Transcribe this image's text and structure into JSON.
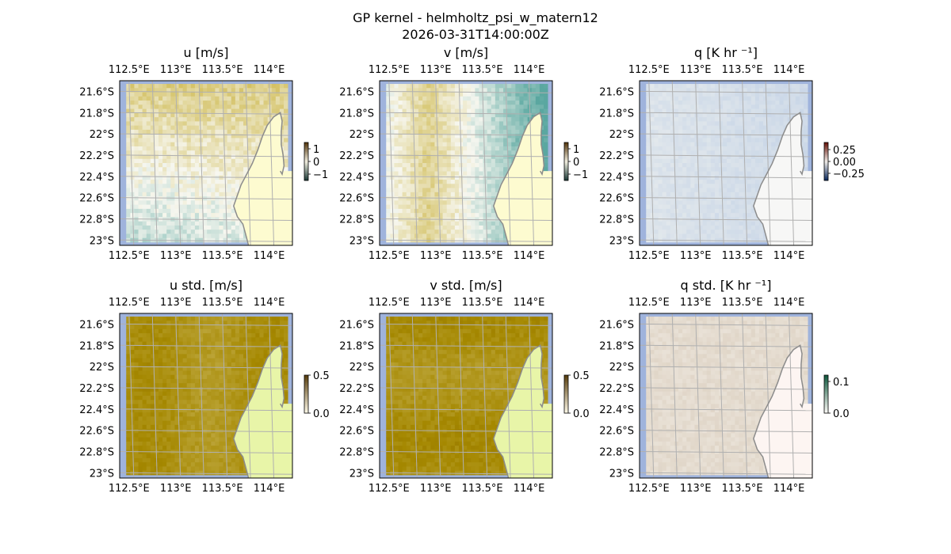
{
  "figure": {
    "title": "GP kernel - helmholtz_psi_w_matern12",
    "subtitle": "2026-03-31T14:00:00Z"
  },
  "colors": {
    "land": "#fdfbd0",
    "land_std": "#e8f5a8",
    "ocean_edge": "#9fb3dc",
    "coast": "#8c8c8c",
    "grid": "#b0b0b0"
  },
  "chart_data": [
    {
      "type": "heatmap",
      "title": "u [m/s]",
      "x_ticks": [
        "112.5°E",
        "113°E",
        "113.5°E",
        "114°E"
      ],
      "y_ticks": [
        "21.6°S",
        "21.8°S",
        "22°S",
        "22.2°S",
        "22.4°S",
        "22.6°S",
        "22.8°S",
        "23°S"
      ],
      "x_tick_values": [
        112.5,
        113.0,
        113.5,
        114.0
      ],
      "y_tick_values": [
        -21.6,
        -21.8,
        -22.0,
        -22.2,
        -22.4,
        -22.6,
        -22.8,
        -23.0
      ],
      "xlim": [
        112.4,
        114.25
      ],
      "ylim": [
        -23.05,
        -21.5
      ],
      "colorbar": {
        "ticks": [
          "1",
          "0",
          "−1"
        ],
        "tick_values": [
          1,
          0,
          -1
        ],
        "range": [
          -1.5,
          1.5
        ]
      },
      "field": "u",
      "grid": true
    },
    {
      "type": "heatmap",
      "title": "v [m/s]",
      "x_ticks": [
        "112.5°E",
        "113°E",
        "113.5°E",
        "114°E"
      ],
      "y_ticks": [
        "21.6°S",
        "21.8°S",
        "22°S",
        "22.2°S",
        "22.4°S",
        "22.6°S",
        "22.8°S",
        "23°S"
      ],
      "x_tick_values": [
        112.5,
        113.0,
        113.5,
        114.0
      ],
      "y_tick_values": [
        -21.6,
        -21.8,
        -22.0,
        -22.2,
        -22.4,
        -22.6,
        -22.8,
        -23.0
      ],
      "xlim": [
        112.4,
        114.25
      ],
      "ylim": [
        -23.05,
        -21.5
      ],
      "colorbar": {
        "ticks": [
          "1",
          "0",
          "−1"
        ],
        "tick_values": [
          1,
          0,
          -1
        ],
        "range": [
          -1.5,
          1.5
        ]
      },
      "field": "v",
      "grid": true
    },
    {
      "type": "heatmap",
      "title": "q [K hr ⁻¹]",
      "x_ticks": [
        "112.5°E",
        "113°E",
        "113.5°E",
        "114°E"
      ],
      "y_ticks": [
        "21.6°S",
        "21.8°S",
        "22°S",
        "22.2°S",
        "22.4°S",
        "22.6°S",
        "22.8°S",
        "23°S"
      ],
      "x_tick_values": [
        112.5,
        113.0,
        113.5,
        114.0
      ],
      "y_tick_values": [
        -21.6,
        -21.8,
        -22.0,
        -22.2,
        -22.4,
        -22.6,
        -22.8,
        -23.0
      ],
      "xlim": [
        112.4,
        114.25
      ],
      "ylim": [
        -23.05,
        -21.5
      ],
      "colorbar": {
        "ticks": [
          "0.25",
          "0.00",
          "−0.25"
        ],
        "tick_values": [
          0.25,
          0,
          -0.25
        ],
        "range": [
          -0.4,
          0.4
        ]
      },
      "field": "q",
      "grid": true
    },
    {
      "type": "heatmap",
      "title": "u std. [m/s]",
      "x_ticks": [
        "112.5°E",
        "113°E",
        "113.5°E",
        "114°E"
      ],
      "y_ticks": [
        "21.6°S",
        "21.8°S",
        "22°S",
        "22.2°S",
        "22.4°S",
        "22.6°S",
        "22.8°S",
        "23°S"
      ],
      "x_tick_values": [
        112.5,
        113.0,
        113.5,
        114.0
      ],
      "y_tick_values": [
        -21.6,
        -21.8,
        -22.0,
        -22.2,
        -22.4,
        -22.6,
        -22.8,
        -23.0
      ],
      "xlim": [
        112.4,
        114.25
      ],
      "ylim": [
        -23.05,
        -21.5
      ],
      "colorbar": {
        "ticks": [
          "0.5",
          "0.0"
        ],
        "tick_values": [
          0.5,
          0.0
        ],
        "range": [
          0,
          0.5
        ]
      },
      "field": "u_std",
      "grid": true
    },
    {
      "type": "heatmap",
      "title": "v std. [m/s]",
      "x_ticks": [
        "112.5°E",
        "113°E",
        "113.5°E",
        "114°E"
      ],
      "y_ticks": [
        "21.6°S",
        "21.8°S",
        "22°S",
        "22.2°S",
        "22.4°S",
        "22.6°S",
        "22.8°S",
        "23°S"
      ],
      "x_tick_values": [
        112.5,
        113.0,
        113.5,
        114.0
      ],
      "y_tick_values": [
        -21.6,
        -21.8,
        -22.0,
        -22.2,
        -22.4,
        -22.6,
        -22.8,
        -23.0
      ],
      "xlim": [
        112.4,
        114.25
      ],
      "ylim": [
        -23.05,
        -21.5
      ],
      "colorbar": {
        "ticks": [
          "0.5",
          "0.0"
        ],
        "tick_values": [
          0.5,
          0.0
        ],
        "range": [
          0,
          0.5
        ]
      },
      "field": "v_std",
      "grid": true
    },
    {
      "type": "heatmap",
      "title": "q std. [K hr ⁻¹]",
      "x_ticks": [
        "112.5°E",
        "113°E",
        "113.5°E",
        "114°E"
      ],
      "y_ticks": [
        "21.6°S",
        "21.8°S",
        "22°S",
        "22.2°S",
        "22.4°S",
        "22.6°S",
        "22.8°S",
        "23°S"
      ],
      "x_tick_values": [
        112.5,
        113.0,
        113.5,
        114.0
      ],
      "y_tick_values": [
        -21.6,
        -21.8,
        -22.0,
        -22.2,
        -22.4,
        -22.6,
        -22.8,
        -23.0
      ],
      "xlim": [
        112.4,
        114.25
      ],
      "ylim": [
        -23.05,
        -21.5
      ],
      "colorbar": {
        "ticks": [
          "0.1",
          "0.0"
        ],
        "tick_values": [
          0.1,
          0.0
        ],
        "range": [
          0,
          0.12
        ]
      },
      "field": "q_std",
      "grid": true
    }
  ]
}
